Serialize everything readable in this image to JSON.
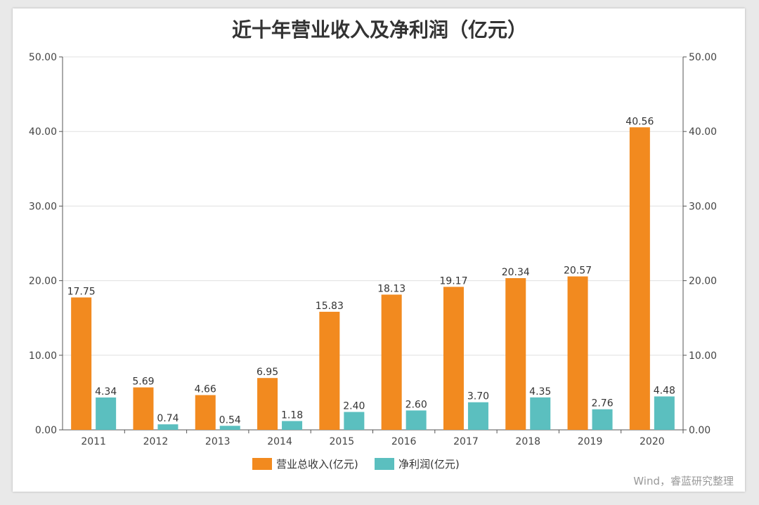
{
  "chart_data": {
    "type": "bar",
    "title": "近十年营业收入及净利润（亿元）",
    "categories": [
      "2011",
      "2012",
      "2013",
      "2014",
      "2015",
      "2016",
      "2017",
      "2018",
      "2019",
      "2020"
    ],
    "series": [
      {
        "name": "营业总收入(亿元)",
        "color": "#f28a1f",
        "values": [
          17.75,
          5.69,
          4.66,
          6.95,
          15.83,
          18.13,
          19.17,
          20.34,
          20.57,
          40.56
        ],
        "labels": [
          "17.75",
          "5.69",
          "4.66",
          "6.95",
          "15.83",
          "18.13",
          "19.17",
          "20.34",
          "20.57",
          "40.56"
        ]
      },
      {
        "name": "净利润(亿元)",
        "color": "#5bbfbf",
        "values": [
          4.34,
          0.74,
          0.54,
          1.18,
          2.4,
          2.6,
          3.7,
          4.35,
          2.76,
          4.48
        ],
        "labels": [
          "4.34",
          "0.74",
          "0.54",
          "1.18",
          "2.40",
          "2.60",
          "3.70",
          "4.35",
          "2.76",
          "4.48"
        ]
      }
    ],
    "ylim": [
      0,
      50
    ],
    "y_ticks": [
      0,
      10,
      20,
      30,
      40,
      50
    ],
    "y_tick_labels": [
      "0.00",
      "10.00",
      "20.00",
      "30.00",
      "40.00",
      "50.00"
    ],
    "y_right_ticks": [
      0,
      10,
      20,
      30,
      40,
      50
    ],
    "y_right_tick_labels": [
      "0.00",
      "10.00",
      "20.00",
      "30.00",
      "40.00",
      "50.00"
    ],
    "grid": true,
    "legend_position": "bottom-center"
  },
  "source": "Wind，睿蓝研究整理"
}
